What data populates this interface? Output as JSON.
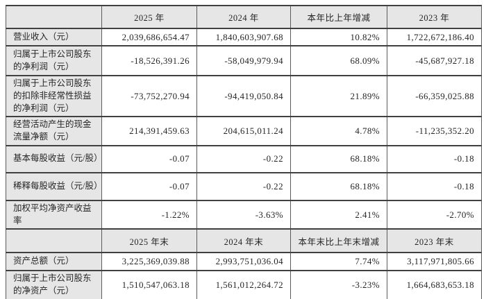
{
  "table": {
    "style": {
      "header_bg": "#e6e6e6",
      "label_bg": "#e6e6e6",
      "value_bg": "#ffffff",
      "border_color": "#404040",
      "text_color": "#262626"
    },
    "sections": [
      {
        "header": {
          "c0": "",
          "c1": "2025 年",
          "c2": "2024 年",
          "c3": "本年比上年增减",
          "c4": "2023 年"
        },
        "rows": [
          {
            "label": "营业收入（元）",
            "v1": "2,039,686,654.47",
            "v2": "1,840,603,907.68",
            "v3": "10.82%",
            "v4": "1,722,672,186.40"
          },
          {
            "label": "归属于上市公司股东的净利润（元）",
            "v1": "-18,526,391.26",
            "v2": "-58,049,979.94",
            "v3": "68.09%",
            "v4": "-45,687,927.18"
          },
          {
            "label": "归属于上市公司股东的扣除非经常性损益的净利润（元）",
            "v1": "-73,752,270.94",
            "v2": "-94,419,050.84",
            "v3": "21.89%",
            "v4": "-66,359,025.88"
          },
          {
            "label": "经营活动产生的现金流量净额（元）",
            "v1": "214,391,459.63",
            "v2": "204,615,011.24",
            "v3": "4.78%",
            "v4": "-11,235,352.20"
          },
          {
            "label": "基本每股收益（元/股）",
            "v1": "-0.07",
            "v2": "-0.22",
            "v3": "68.18%",
            "v4": "-0.18"
          },
          {
            "label": "稀释每股收益（元/股）",
            "v1": "-0.07",
            "v2": "-0.22",
            "v3": "68.18%",
            "v4": "-0.18"
          },
          {
            "label": "加权平均净资产收益率",
            "v1": "-1.22%",
            "v2": "-3.63%",
            "v3": "2.41%",
            "v4": "-2.70%"
          }
        ]
      },
      {
        "header": {
          "c0": "",
          "c1": "2025 年末",
          "c2": "2024 年末",
          "c3": "本年末比上年末增减",
          "c4": "2023 年末"
        },
        "rows": [
          {
            "label": "资产总额（元）",
            "v1": "3,225,369,039.88",
            "v2": "2,993,751,036.04",
            "v3": "7.74%",
            "v4": "3,117,971,805.66"
          },
          {
            "label": "归属于上市公司股东的净资产（元）",
            "v1": "1,510,547,063.18",
            "v2": "1,561,012,264.72",
            "v3": "-3.23%",
            "v4": "1,664,683,653.18"
          }
        ]
      }
    ]
  }
}
